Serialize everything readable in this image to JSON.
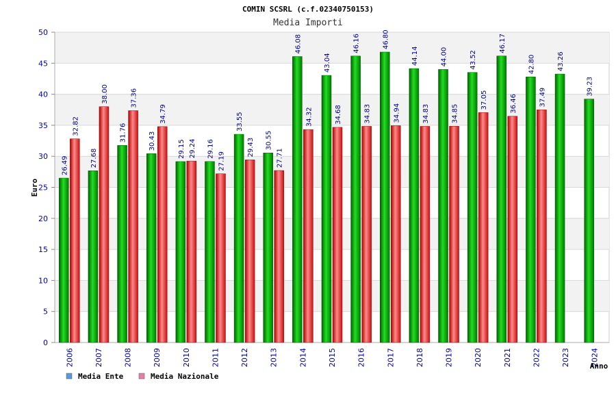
{
  "chart_data": {
    "type": "bar",
    "title": "COMIN SCSRL (c.f.02340750153)",
    "subtitle": "Media Importi",
    "xlabel": "Anno",
    "ylabel": "Euro",
    "ylim": [
      0,
      50
    ],
    "yticks": [
      0,
      5,
      10,
      15,
      20,
      25,
      30,
      35,
      40,
      45,
      50
    ],
    "grid": true,
    "legend_position": "bottom-left",
    "categories": [
      "2006",
      "2007",
      "2008",
      "2009",
      "2010",
      "2011",
      "2012",
      "2013",
      "2014",
      "2015",
      "2016",
      "2017",
      "2018",
      "2019",
      "2020",
      "2021",
      "2022",
      "2023",
      "2024"
    ],
    "series": [
      {
        "name": "Media Ente",
        "color": "#00a800",
        "legend_color": "#5b9bd5",
        "values": [
          26.49,
          27.68,
          31.76,
          30.43,
          29.15,
          29.16,
          33.55,
          30.55,
          46.08,
          43.04,
          46.16,
          46.8,
          44.14,
          44.0,
          43.52,
          46.17,
          42.8,
          43.26,
          39.23
        ],
        "labels": [
          "26.49",
          "27.68",
          "31.76",
          "30.43",
          "29.15",
          "29.16",
          "33.55",
          "30.55",
          "46.08",
          "43.04",
          "46.16",
          "46.80",
          "44.14",
          "44.00",
          "43.52",
          "46.17",
          "42.80",
          "43.26",
          "39.23"
        ]
      },
      {
        "name": "Media Nazionale",
        "color": "#e02020",
        "legend_color": "#e67fa8",
        "values": [
          32.82,
          38.0,
          37.36,
          34.79,
          29.24,
          27.19,
          29.43,
          27.71,
          34.32,
          34.68,
          34.83,
          34.94,
          34.83,
          34.85,
          37.05,
          36.46,
          37.49,
          null,
          null
        ],
        "labels": [
          "32.82",
          "38.00",
          "37.36",
          "34.79",
          "29.24",
          "27.19",
          "29.43",
          "27.71",
          "34.32",
          "34.68",
          "34.83",
          "34.94",
          "34.83",
          "34.85",
          "37.05",
          "36.46",
          "37.49",
          null,
          null
        ]
      }
    ]
  }
}
